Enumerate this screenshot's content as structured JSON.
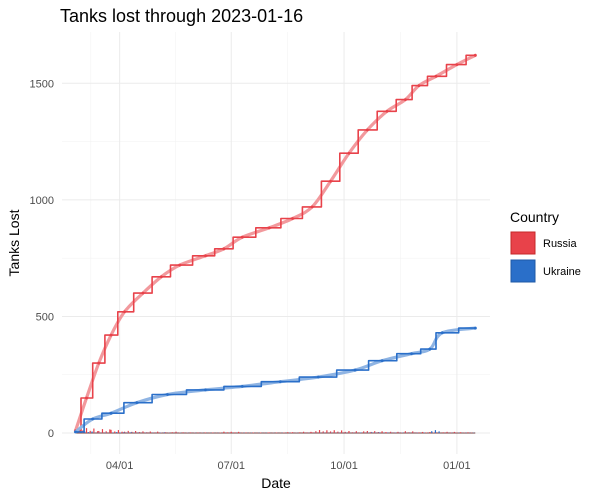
{
  "chart_data": {
    "type": "line",
    "title": "Tanks lost through 2023-01-16",
    "xlabel": "Date",
    "ylabel": "Tanks Lost",
    "x_tick_labels": [
      "04/01",
      "07/01",
      "10/01",
      "01/01"
    ],
    "x_tick_dates": [
      "2022-04-01",
      "2022-07-01",
      "2022-10-01",
      "2023-01-01"
    ],
    "xlim": [
      "2022-02-13",
      "2023-01-28"
    ],
    "y_ticks": [
      0,
      500,
      1000,
      1500
    ],
    "ylim": [
      -90,
      1720
    ],
    "grid": true,
    "legend_title": "Country",
    "legend_position": "right",
    "series": [
      {
        "name": "Russia",
        "color": "#e8424a",
        "points": [
          [
            "2022-02-24",
            10
          ],
          [
            "2022-03-05",
            150
          ],
          [
            "2022-03-15",
            300
          ],
          [
            "2022-03-25",
            420
          ],
          [
            "2022-04-05",
            520
          ],
          [
            "2022-04-20",
            600
          ],
          [
            "2022-05-05",
            670
          ],
          [
            "2022-05-20",
            720
          ],
          [
            "2022-06-10",
            760
          ],
          [
            "2022-06-25",
            790
          ],
          [
            "2022-07-10",
            840
          ],
          [
            "2022-08-01",
            880
          ],
          [
            "2022-08-20",
            920
          ],
          [
            "2022-09-05",
            970
          ],
          [
            "2022-09-20",
            1080
          ],
          [
            "2022-10-05",
            1200
          ],
          [
            "2022-10-20",
            1300
          ],
          [
            "2022-11-05",
            1380
          ],
          [
            "2022-11-20",
            1430
          ],
          [
            "2022-12-01",
            1490
          ],
          [
            "2022-12-15",
            1530
          ],
          [
            "2023-01-01",
            1580
          ],
          [
            "2023-01-16",
            1620
          ]
        ]
      },
      {
        "name": "Ukraine",
        "color": "#2a6fc9",
        "points": [
          [
            "2022-02-24",
            5
          ],
          [
            "2022-03-10",
            60
          ],
          [
            "2022-03-25",
            85
          ],
          [
            "2022-04-15",
            130
          ],
          [
            "2022-05-10",
            165
          ],
          [
            "2022-06-10",
            185
          ],
          [
            "2022-07-10",
            200
          ],
          [
            "2022-08-10",
            220
          ],
          [
            "2022-09-10",
            240
          ],
          [
            "2022-10-10",
            270
          ],
          [
            "2022-11-01",
            310
          ],
          [
            "2022-11-25",
            340
          ],
          [
            "2022-12-10",
            360
          ],
          [
            "2022-12-20",
            430
          ],
          [
            "2023-01-16",
            450
          ]
        ]
      }
    ]
  }
}
